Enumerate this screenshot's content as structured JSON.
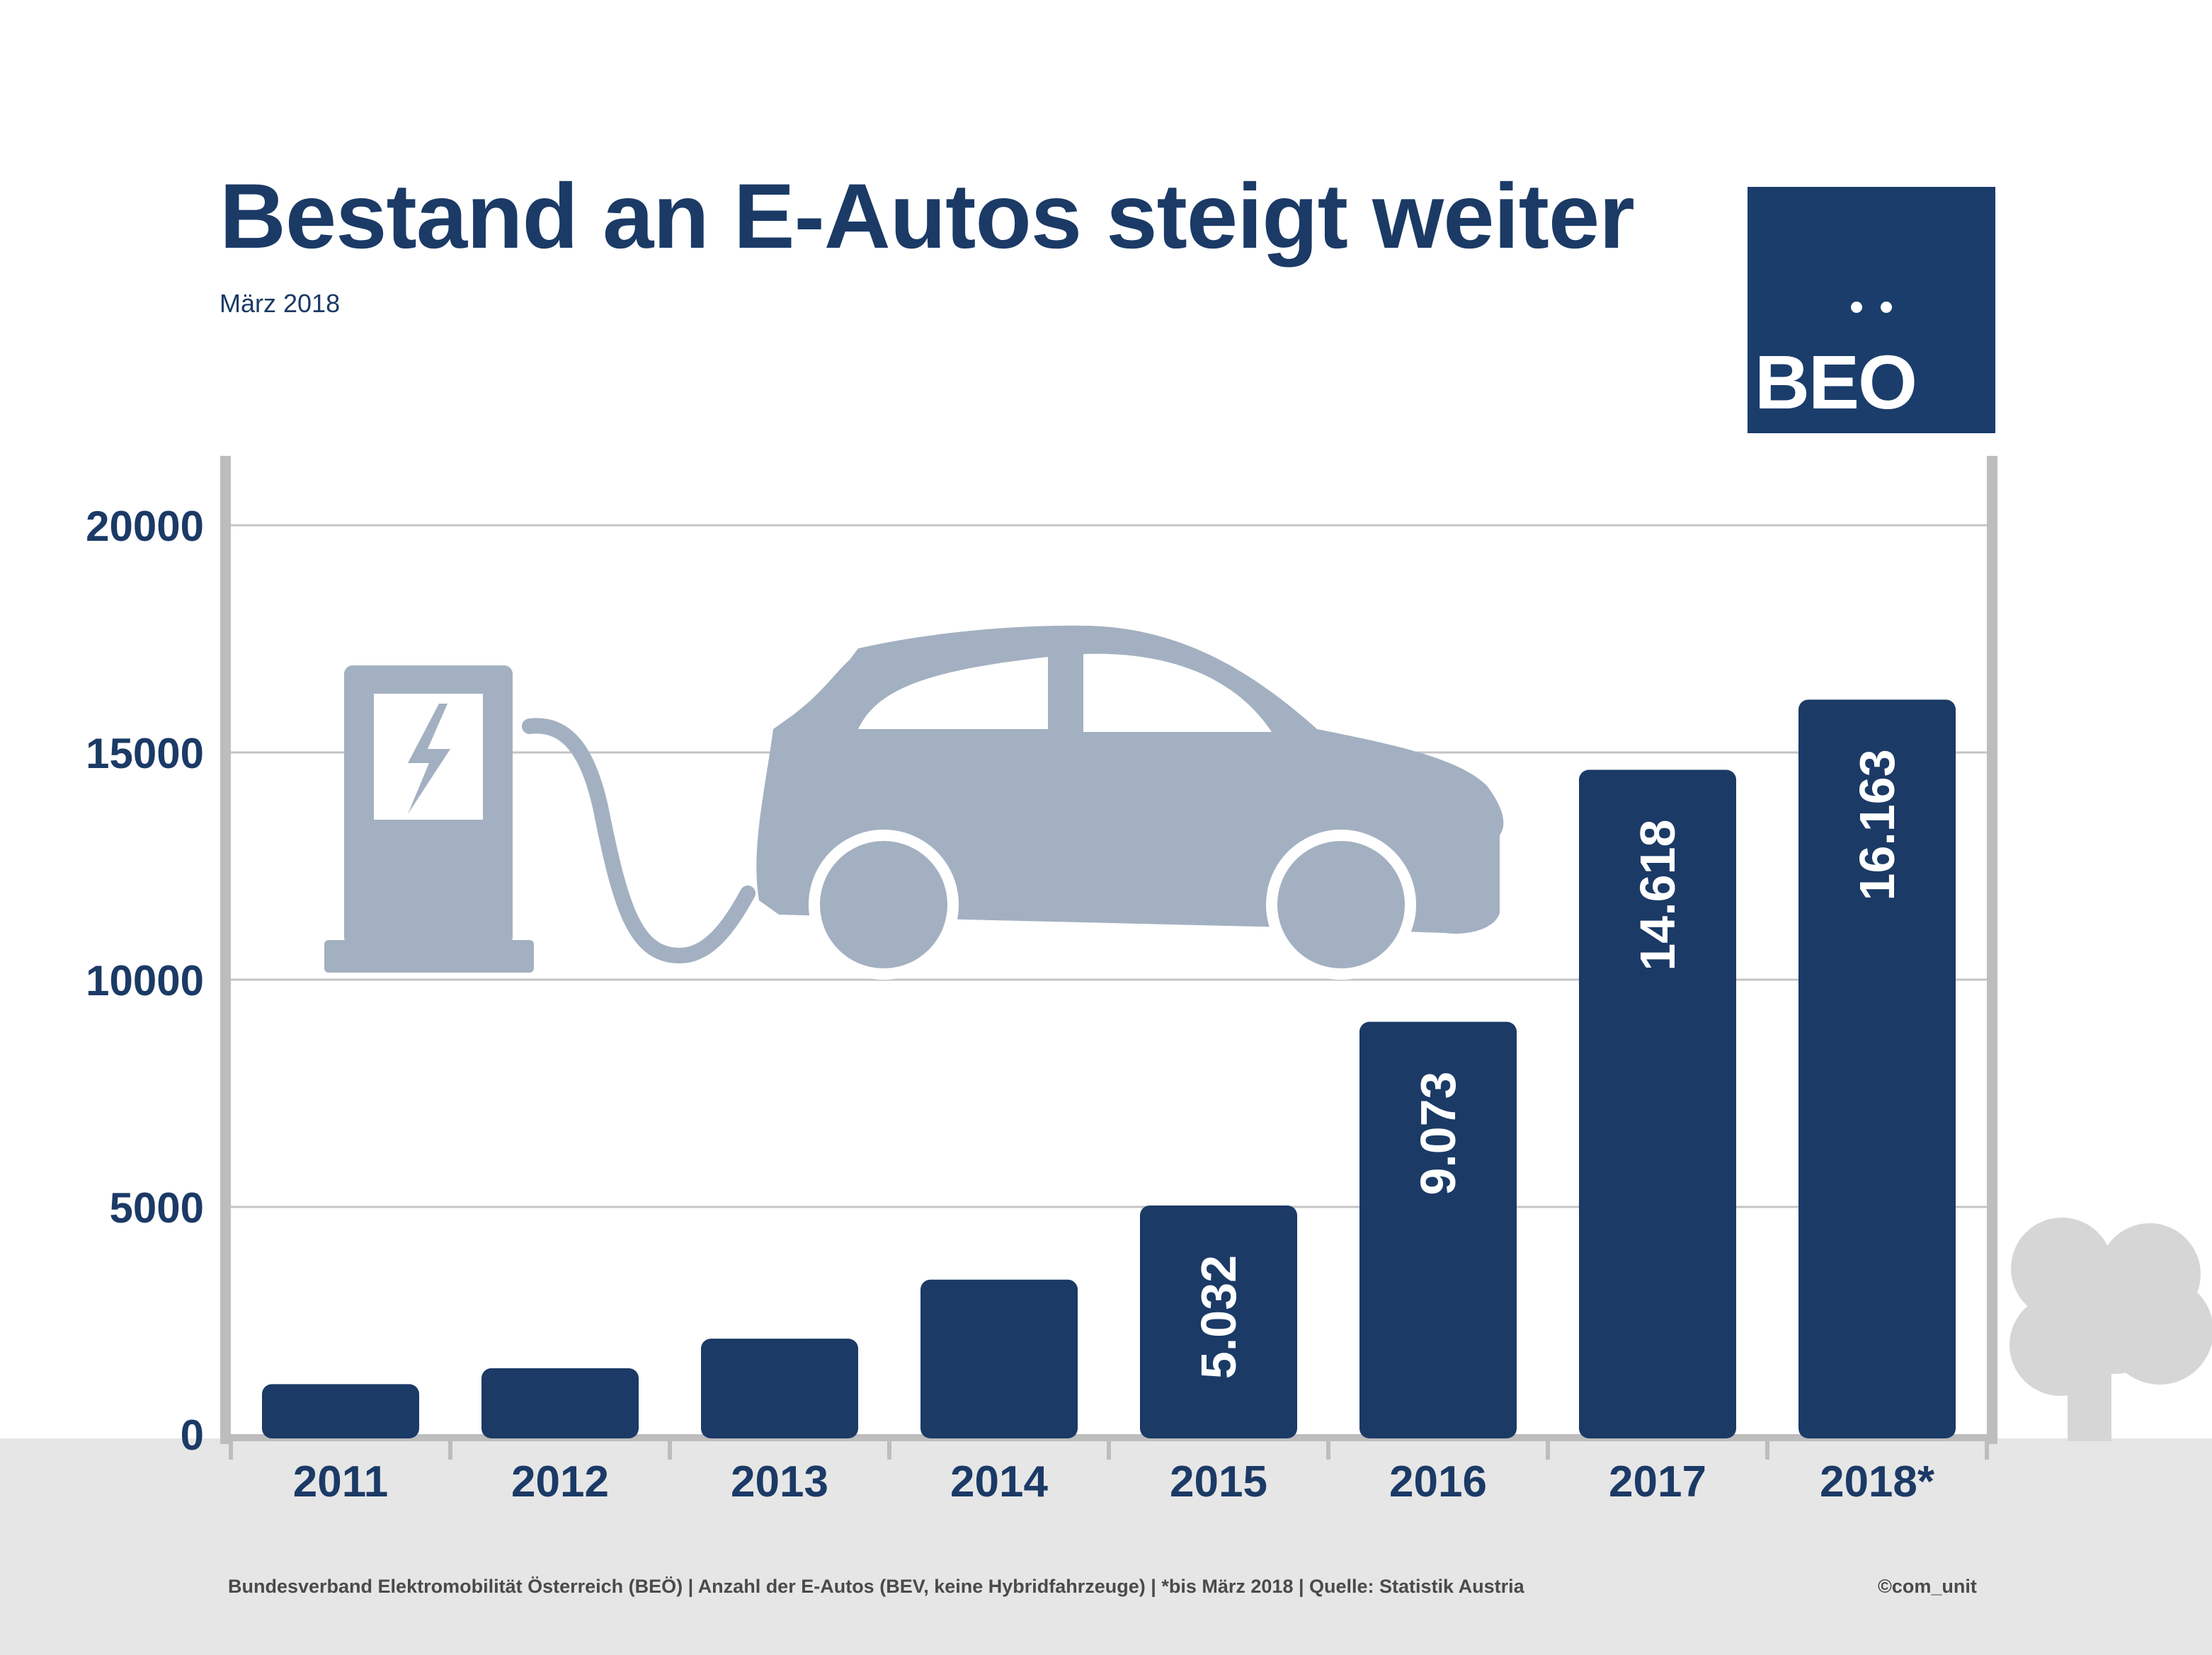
{
  "header": {
    "title": "Bestand an E-Autos steigt weiter",
    "subtitle": "März 2018"
  },
  "logo": {
    "text": "BEO",
    "icon": "beo-logo"
  },
  "footer": {
    "source": "Bundesverband Elektromobilität Österreich (BEÖ) | Anzahl der E-Autos (BEV, keine Hybridfahrzeuge) | *bis März 2018 | Quelle: Statistik Austria",
    "credit": "©com_unit"
  },
  "illustration": {
    "icons": [
      "charging-station-icon",
      "lightning-icon",
      "charging-cable-icon",
      "electric-car-icon",
      "tree-icon"
    ]
  },
  "colors": {
    "bar": "#1b3a66",
    "axis": "#bdbdbd",
    "grid": "#c4c4c4",
    "illustration": "#a3b0c1",
    "ground": "#e6e6e6"
  },
  "chart_data": {
    "type": "bar",
    "categories": [
      "2011",
      "2012",
      "2013",
      "2014",
      "2015",
      "2016",
      "2017",
      "2018*"
    ],
    "values": [
      1100,
      1450,
      2100,
      3400,
      5032,
      9073,
      14618,
      16163
    ],
    "data_labels": [
      "",
      "",
      "",
      "",
      "5.032",
      "9.073",
      "14.618",
      "16.163"
    ],
    "yticks": [
      "0",
      "5000",
      "10000",
      "15000",
      "20000"
    ],
    "ytick_values": [
      0,
      5000,
      10000,
      15000,
      20000
    ],
    "ylim": [
      0,
      20000
    ],
    "grid": true
  }
}
